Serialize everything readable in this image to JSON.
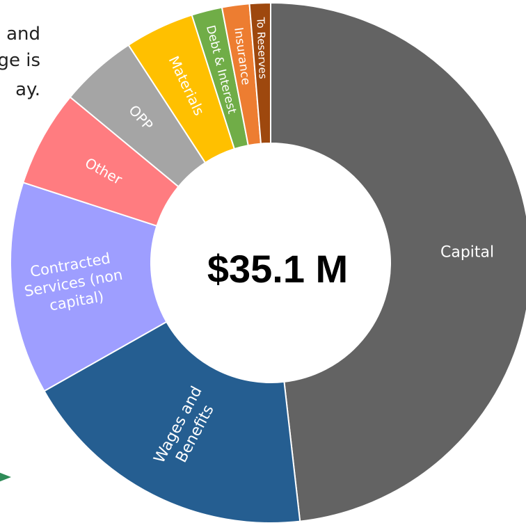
{
  "background_text": [
    "and",
    "ge is",
    "",
    "ay."
  ],
  "chart_data": {
    "type": "pie",
    "donut": true,
    "center_label": "$35.1 M",
    "start_angle_deg": 0,
    "slices": [
      {
        "label": "Capital",
        "value": 48.2,
        "color": "#636363"
      },
      {
        "label": "Wages and\nBenefits",
        "value": 18.6,
        "color": "#255e91"
      },
      {
        "label": "Contracted\nServices (non\ncapital)",
        "value": 13.2,
        "color": "#9e9eff"
      },
      {
        "label": "Other",
        "value": 6.0,
        "color": "#ff7c80"
      },
      {
        "label": "OPP",
        "value": 4.8,
        "color": "#a5a5a5"
      },
      {
        "label": "Materials",
        "value": 4.3,
        "color": "#ffc000"
      },
      {
        "label": "Debt & Interest",
        "value": 1.9,
        "color": "#70ad47"
      },
      {
        "label": "Insurance",
        "value": 1.7,
        "color": "#ed7d31"
      },
      {
        "label": "To Reserves",
        "value": 1.3,
        "color": "#9e480e"
      }
    ]
  },
  "arrow_color": "#2e8b57"
}
